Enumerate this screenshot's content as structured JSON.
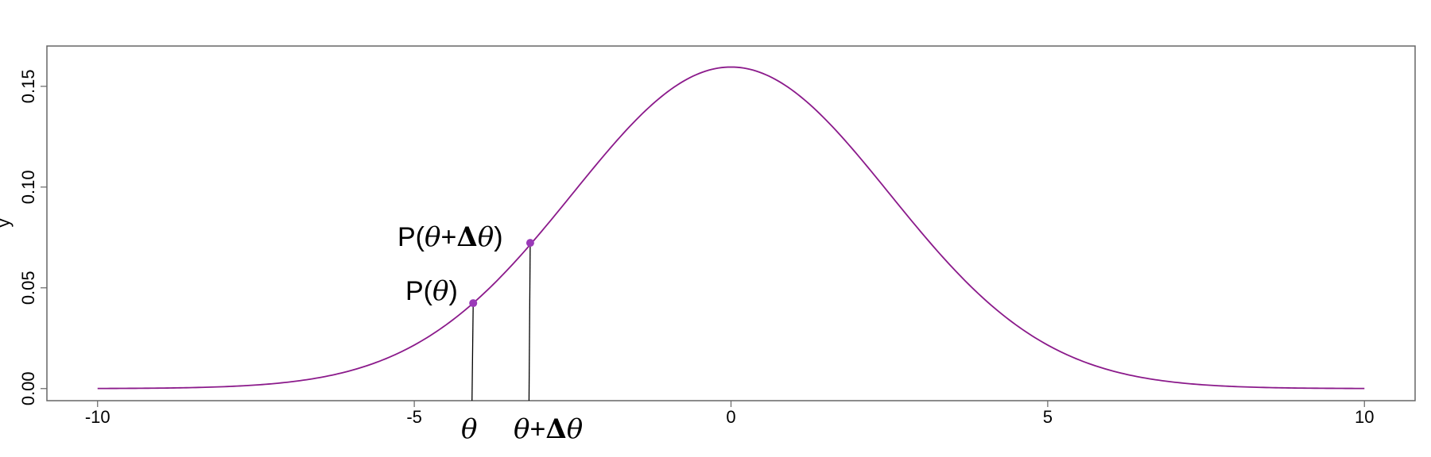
{
  "chart_data": {
    "type": "line",
    "title": "",
    "xlabel": "",
    "ylabel": "y",
    "xlim": [
      -10.8,
      10.8
    ],
    "ylim": [
      -0.006,
      0.17
    ],
    "x_ticks": [
      -10,
      -5,
      0,
      5,
      10
    ],
    "x_tick_labels": [
      "-10",
      "-5",
      "0",
      "5",
      "10"
    ],
    "y_ticks": [
      0.0,
      0.05,
      0.1,
      0.15
    ],
    "y_tick_labels": [
      "0.00",
      "0.05",
      "0.10",
      "0.15"
    ],
    "grid": false,
    "legend": "none",
    "curve": {
      "distribution": "normal",
      "mean": 0,
      "sd": 2.5,
      "x_range": [
        -10,
        10
      ],
      "color": "#8b1a8b"
    },
    "points": [
      {
        "name": "P(θ)",
        "x": -4.07,
        "y": 0.0424,
        "color": "#9a3ab8"
      },
      {
        "name": "P(θ+Δθ)",
        "x": -3.17,
        "y": 0.0723,
        "color": "#9a3ab8"
      }
    ],
    "annotations": {
      "p_theta": {
        "prefix": "P(",
        "theta": "θ",
        "suffix": ")"
      },
      "p_theta_delta": {
        "prefix": "P(",
        "theta": "θ",
        "plus": "+",
        "delta": "Δ",
        "theta2": "θ",
        "suffix": ")"
      },
      "x_theta": {
        "theta": "θ"
      },
      "x_theta_delta": {
        "theta": "θ",
        "plus": "+",
        "delta": "Δ",
        "theta2": "θ"
      }
    },
    "colors": {
      "curve": "#8b1a8b",
      "points": "#9a3ab8",
      "axis": "#666666",
      "drop_lines": "#000000"
    }
  }
}
